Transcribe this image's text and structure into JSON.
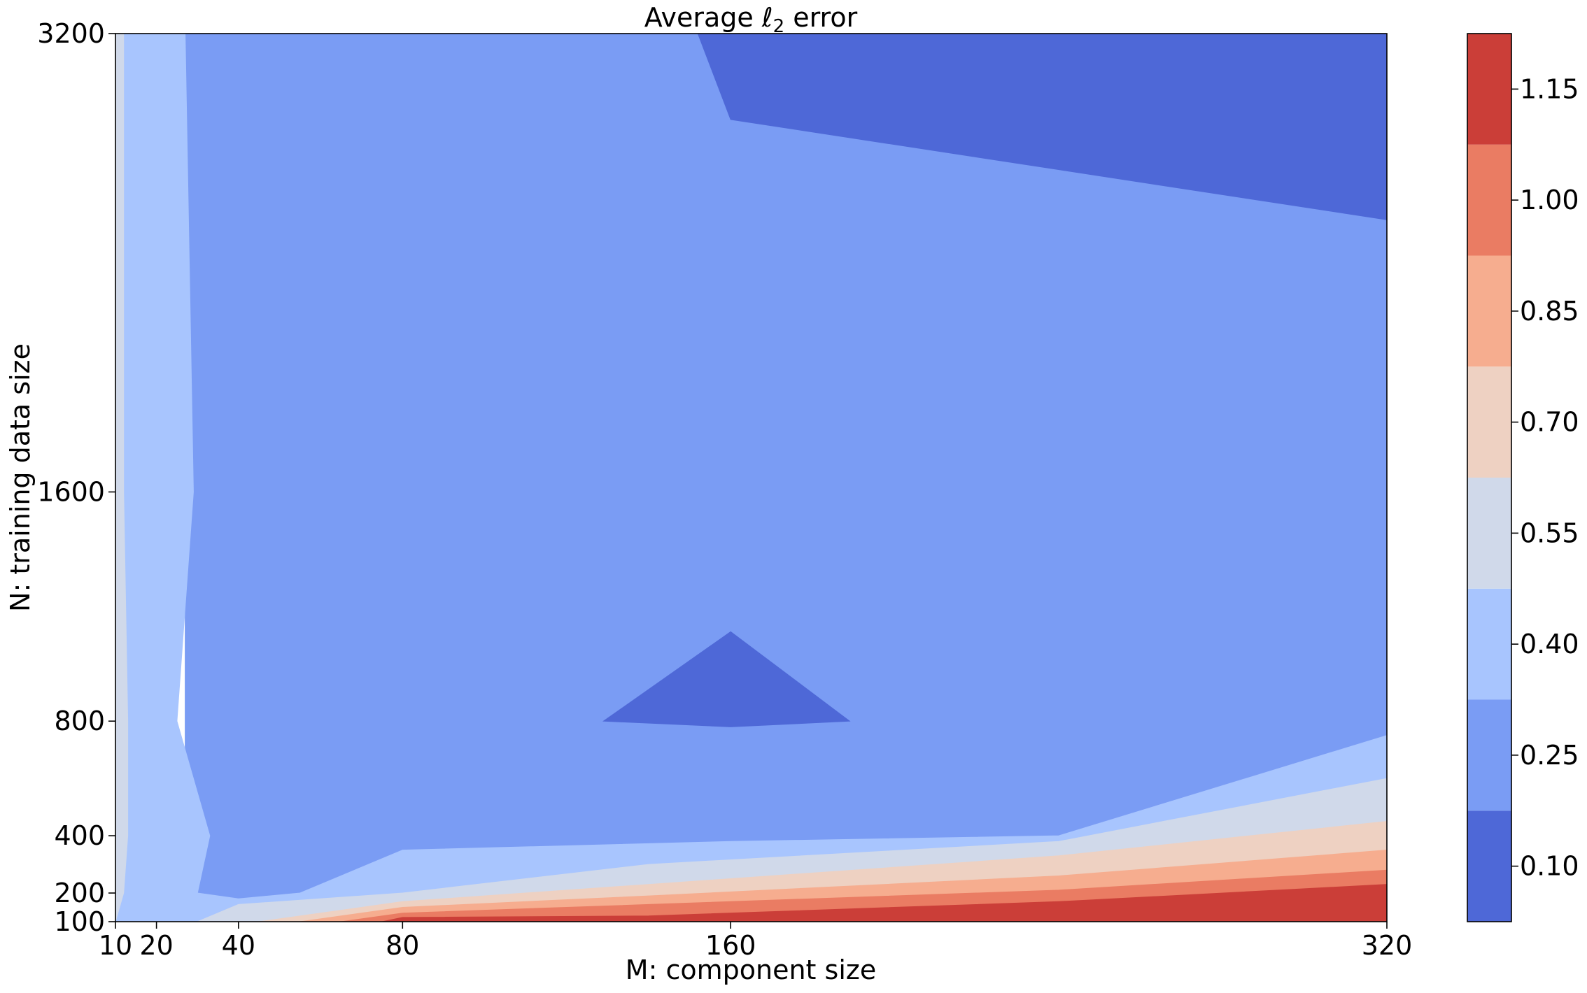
{
  "chart_data": {
    "type": "contourf",
    "title_prefix": "Average ",
    "title_symbol": "ℓ",
    "title_subscript": "2",
    "title_suffix": " error",
    "xlabel": "M: component size",
    "ylabel": "N: training data size",
    "x_ticks": [
      10,
      20,
      40,
      80,
      160,
      320
    ],
    "y_ticks": [
      100,
      200,
      400,
      800,
      1600,
      3200
    ],
    "xlim": [
      10,
      320
    ],
    "ylim": [
      100,
      3200
    ],
    "colorbar": {
      "levels": [
        0.025,
        0.175,
        0.325,
        0.475,
        0.625,
        0.775,
        0.925,
        1.075,
        1.225
      ],
      "tick_values": [
        0.1,
        0.25,
        0.4,
        0.55,
        0.7,
        0.85,
        1.0,
        1.15
      ],
      "tick_labels": [
        "0.10",
        "0.25",
        "0.40",
        "0.55",
        "0.70",
        "0.85",
        "1.00",
        "1.15"
      ],
      "colors": [
        "#4e68d7",
        "#7a9cf4",
        "#a8c5fe",
        "#d0d9ea",
        "#eed1c2",
        "#f6ad8f",
        "#ea7c63",
        "#cb3e38"
      ]
    },
    "regions": [
      {
        "band": 0.25,
        "points": [
          [
            27,
            3200
          ],
          [
            320,
            3200
          ],
          [
            320,
            100
          ],
          [
            27,
            100
          ]
        ]
      },
      {
        "band": 0.1,
        "points": [
          [
            143,
            3200
          ],
          [
            320,
            3200
          ],
          [
            320,
            2550
          ],
          [
            160,
            2900
          ],
          [
            152,
            3200
          ]
        ]
      },
      {
        "band": 0.1,
        "points": [
          [
            129,
            800
          ],
          [
            160,
            1112
          ],
          [
            189,
            800
          ],
          [
            160,
            780
          ]
        ]
      },
      {
        "band": 0.4,
        "points": [
          [
            10,
            3200
          ],
          [
            27,
            3200
          ],
          [
            29,
            1600
          ],
          [
            25,
            800
          ],
          [
            33,
            400
          ],
          [
            30,
            200
          ],
          [
            40,
            180
          ],
          [
            55,
            200
          ],
          [
            80,
            350
          ],
          [
            160,
            380
          ],
          [
            240,
            400
          ],
          [
            320,
            750
          ],
          [
            320,
            100
          ],
          [
            10,
            100
          ]
        ]
      },
      {
        "band": 0.55,
        "points": [
          [
            10,
            3200
          ],
          [
            12,
            3200
          ],
          [
            12,
            1600
          ],
          [
            13,
            800
          ],
          [
            13,
            400
          ],
          [
            12,
            200
          ],
          [
            10,
            100
          ]
        ]
      },
      {
        "band": 0.55,
        "points": [
          [
            30,
            100
          ],
          [
            40,
            160
          ],
          [
            80,
            200
          ],
          [
            140,
            300
          ],
          [
            240,
            380
          ],
          [
            320,
            600
          ],
          [
            320,
            100
          ]
        ]
      },
      {
        "band": 0.7,
        "points": [
          [
            45,
            100
          ],
          [
            80,
            170
          ],
          [
            140,
            230
          ],
          [
            240,
            330
          ],
          [
            320,
            450
          ],
          [
            320,
            100
          ]
        ]
      },
      {
        "band": 0.85,
        "points": [
          [
            55,
            100
          ],
          [
            80,
            150
          ],
          [
            140,
            190
          ],
          [
            240,
            260
          ],
          [
            320,
            350
          ],
          [
            320,
            100
          ]
        ]
      },
      {
        "band": 1.0,
        "points": [
          [
            65,
            100
          ],
          [
            80,
            130
          ],
          [
            140,
            160
          ],
          [
            240,
            210
          ],
          [
            320,
            280
          ],
          [
            320,
            100
          ]
        ]
      },
      {
        "band": 1.15,
        "points": [
          [
            75,
            100
          ],
          [
            80,
            115
          ],
          [
            140,
            120
          ],
          [
            240,
            170
          ],
          [
            320,
            230
          ],
          [
            320,
            100
          ]
        ]
      }
    ]
  }
}
